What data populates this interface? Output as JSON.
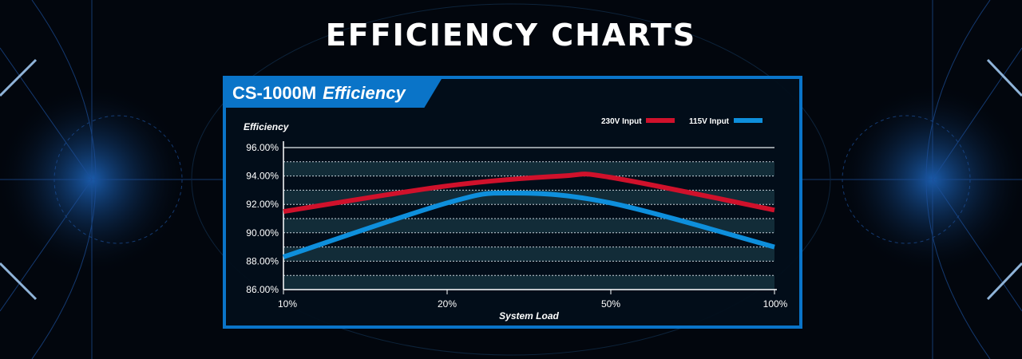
{
  "page_title": "EFFICIENCY CHARTS",
  "panel": {
    "model": "CS-1000M",
    "subtitle": "Efficiency"
  },
  "colors": {
    "accent": "#0a74c8",
    "series_230": "#d0112b",
    "series_115": "#0e8fdc"
  },
  "chart_data": {
    "type": "line",
    "title": "CS-1000M Efficiency",
    "xlabel": "System Load",
    "ylabel": "Efficiency",
    "categories": [
      "10%",
      "20%",
      "50%",
      "100%"
    ],
    "ylim": [
      86,
      96
    ],
    "yticks": [
      "86.00%",
      "88.00%",
      "90.00%",
      "92.00%",
      "94.00%",
      "96.00%"
    ],
    "grid": true,
    "legend": "top-right",
    "series": [
      {
        "name": "230V Input",
        "values": [
          91.5,
          93.3,
          93.9,
          91.6
        ],
        "peak": {
          "x_index": 1.7,
          "value": 94.0
        }
      },
      {
        "name": "115V Input",
        "values": [
          88.3,
          92.1,
          92.1,
          89.0
        ],
        "peak": {
          "x_index": 1.4,
          "value": 92.8
        }
      }
    ]
  }
}
